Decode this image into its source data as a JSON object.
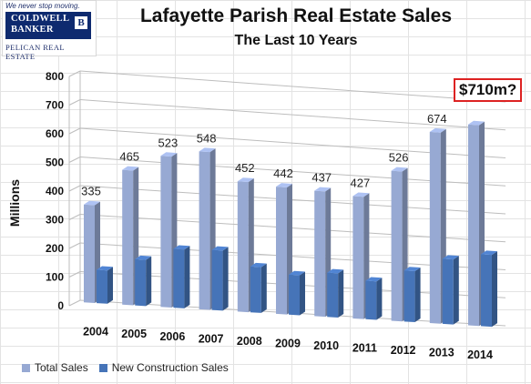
{
  "logo": {
    "tagline": "We never stop moving.",
    "brand_line1": "COLDWELL",
    "brand_line2": "BANKER",
    "brand_mark": "B",
    "subline": "PELICAN REAL ESTATE"
  },
  "callout": "$710m?",
  "colors": {
    "total": "#97a9d3",
    "new": "#4674b8"
  },
  "chart_data": {
    "type": "bar",
    "title": "Lafayette Parish Real Estate Sales",
    "subtitle": "The Last 10 Years",
    "ylabel": "Millions",
    "xlabel": "",
    "ylim": [
      0,
      800
    ],
    "yticks": [
      0,
      100,
      200,
      300,
      400,
      500,
      600,
      700,
      800
    ],
    "categories": [
      "2004",
      "2005",
      "2006",
      "2007",
      "2008",
      "2009",
      "2010",
      "2011",
      "2012",
      "2013",
      "2014"
    ],
    "series": [
      {
        "name": "Total Sales",
        "values": [
          335,
          465,
          523,
          548,
          452,
          442,
          437,
          427,
          526,
          674,
          710
        ],
        "labels": [
          "335",
          "465",
          "523",
          "548",
          "452",
          "442",
          "437",
          "427",
          "526",
          "674",
          ""
        ]
      },
      {
        "name": "New Construction Sales",
        "values": [
          110,
          155,
          200,
          205,
          155,
          135,
          150,
          130,
          175,
          225,
          250
        ],
        "labels": [
          "",
          "",
          "",
          "",
          "",
          "",
          "",
          "",
          "",
          "",
          ""
        ]
      }
    ],
    "grid": true,
    "legend": "bottom-left"
  }
}
